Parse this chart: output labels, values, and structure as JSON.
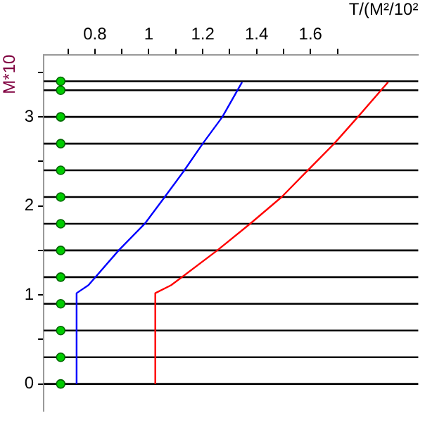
{
  "chart_data": {
    "type": "line",
    "xlabel": "T/(M²/10²",
    "ylabel": "M*10",
    "xlim": [
      0.61,
      2.0
    ],
    "ylim": [
      -0.3,
      3.7
    ],
    "xticks": [
      {
        "value": 0.7,
        "label": null
      },
      0.8,
      {
        "value": 0.9,
        "label": null
      },
      1,
      {
        "value": 1.1,
        "label": null
      },
      1.2,
      {
        "value": 1.3,
        "label": null
      },
      1.4,
      {
        "value": 1.5,
        "label": null
      },
      1.6,
      {
        "value": 1.7,
        "label": null
      }
    ],
    "yticks": [
      0,
      {
        "value": 0.5,
        "label": null
      },
      1,
      {
        "value": 1.5,
        "label": null
      },
      2,
      {
        "value": 2.5,
        "label": null
      },
      3,
      {
        "value": 3.5,
        "label": null
      }
    ],
    "grid": false,
    "legend": false,
    "line_style": "solid",
    "marker": "none",
    "series": [
      {
        "color": "#0000ff",
        "x": [
          0.732,
          0.732,
          0.776,
          0.888,
          0.985,
          1.059,
          1.132,
          1.2,
          1.273,
          1.346
        ],
        "values": [
          0,
          1.02,
          1.11,
          1.5,
          1.8,
          2.1,
          2.4,
          2.7,
          3.0,
          3.39
        ]
      },
      {
        "color": "#ff0000",
        "x": [
          1.024,
          1.024,
          1.083,
          1.254,
          1.376,
          1.493,
          1.59,
          1.688,
          1.776,
          1.888
        ],
        "values": [
          0,
          1.02,
          1.11,
          1.5,
          1.8,
          2.1,
          2.4,
          2.7,
          3.0,
          3.39
        ]
      },
      {
        "type": "scatter",
        "color": "#00cc00",
        "marker": "circle",
        "x": [
          0.673,
          0.673,
          0.673,
          0.673,
          0.673,
          0.673,
          0.673,
          0.673,
          0.673,
          0.673,
          0.673,
          0.673,
          0.673
        ],
        "values": [
          0,
          0.3,
          0.6,
          0.9,
          1.2,
          1.5,
          1.8,
          2.1,
          2.4,
          2.7,
          3.0,
          3.3,
          3.4
        ]
      }
    ],
    "ref_lines": [
      {
        "axis": "y",
        "value": 0,
        "color": "#000000"
      },
      {
        "axis": "y",
        "value": 0.3,
        "color": "#000000"
      },
      {
        "axis": "y",
        "value": 0.6,
        "color": "#000000"
      },
      {
        "axis": "y",
        "value": 0.9,
        "color": "#000000"
      },
      {
        "axis": "y",
        "value": 1.2,
        "color": "#000000"
      },
      {
        "axis": "y",
        "value": 1.5,
        "color": "#000000"
      },
      {
        "axis": "y",
        "value": 1.8,
        "color": "#000000"
      },
      {
        "axis": "y",
        "value": 2.1,
        "color": "#000000"
      },
      {
        "axis": "y",
        "value": 2.4,
        "color": "#000000"
      },
      {
        "axis": "y",
        "value": 2.7,
        "color": "#000000"
      },
      {
        "axis": "y",
        "value": 3.0,
        "color": "#000000"
      },
      {
        "axis": "y",
        "value": 3.3,
        "color": "#000000"
      },
      {
        "axis": "y",
        "value": 3.4,
        "color": "#000000"
      }
    ]
  }
}
